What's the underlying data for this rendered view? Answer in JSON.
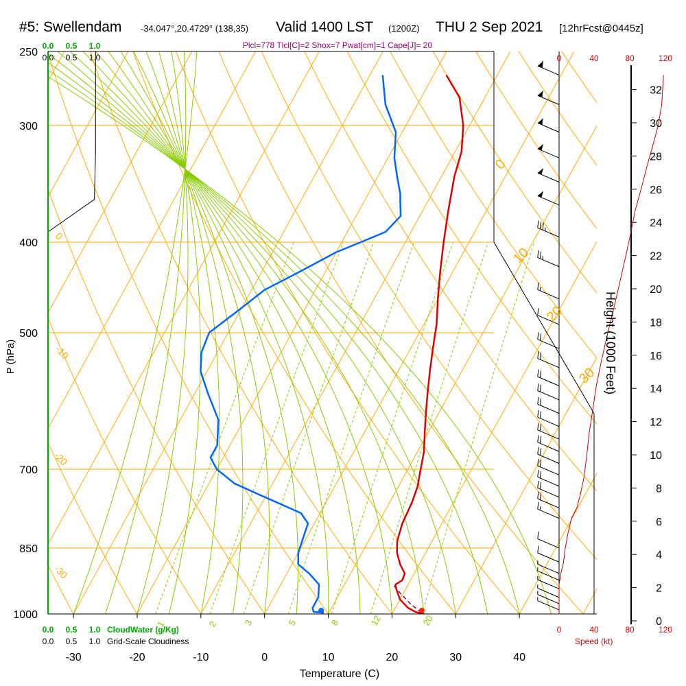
{
  "header": {
    "station": "#5: Swellendam",
    "coords": "-34.047°,20.4729° (138,35)",
    "valid_main": "Valid 1400 LST",
    "valid_z": "(1200Z)",
    "date": "THU 2 Sep 2021",
    "fcst": "[12hrFcst@0445z]"
  },
  "indices_text": "Plcl=778 Tlcl[C]=2 Shox=7 Pwat[cm]=1 Cape[J]= 20",
  "chart_data": {
    "type": "line",
    "title": "#5: Swellendam",
    "xlabel": "Temperature (C)",
    "ylabel": "P (hPa)",
    "y2label": "Height (1000 Feet)",
    "xlim": [
      -34,
      36
    ],
    "ylim": [
      1000,
      250
    ],
    "xticks": [
      -30,
      -20,
      -10,
      0,
      10,
      20,
      30,
      40
    ],
    "yticks": [
      250,
      300,
      400,
      500,
      700,
      850,
      1000
    ],
    "height_ticks": [
      0,
      2,
      4,
      6,
      8,
      10,
      12,
      14,
      16,
      18,
      20,
      22,
      24,
      26,
      28,
      30,
      32
    ],
    "series": [
      {
        "name": "temperature",
        "color": "#e00000",
        "points": [
          [
            25,
            1000
          ],
          [
            23.5,
            995
          ],
          [
            22,
            985
          ],
          [
            20,
            965
          ],
          [
            18.5,
            940
          ],
          [
            18,
            930
          ],
          [
            18.7,
            920
          ],
          [
            18.5,
            905
          ],
          [
            17,
            885
          ],
          [
            15.5,
            860
          ],
          [
            14.5,
            835
          ],
          [
            13.8,
            800
          ],
          [
            13.5,
            760
          ],
          [
            13,
            730
          ],
          [
            12,
            700
          ],
          [
            11,
            670
          ],
          [
            9.5,
            640
          ],
          [
            8,
            610
          ],
          [
            6.5,
            580
          ],
          [
            5,
            550
          ],
          [
            3.5,
            520
          ],
          [
            2,
            490
          ],
          [
            0,
            460
          ],
          [
            -2,
            430
          ],
          [
            -4,
            400
          ],
          [
            -6,
            370
          ],
          [
            -8,
            340
          ],
          [
            -9,
            320
          ],
          [
            -11,
            300
          ],
          [
            -14,
            280
          ],
          [
            -18,
            265
          ]
        ]
      },
      {
        "name": "dewpoint",
        "color": "#0066ff",
        "points": [
          [
            9.2,
            997
          ],
          [
            7.5,
            995
          ],
          [
            7,
            985
          ],
          [
            7,
            960
          ],
          [
            6,
            930
          ],
          [
            3.5,
            905
          ],
          [
            1,
            885
          ],
          [
            0,
            860
          ],
          [
            -0.5,
            830
          ],
          [
            -1,
            800
          ],
          [
            -3,
            780
          ],
          [
            -10,
            750
          ],
          [
            -16,
            725
          ],
          [
            -20,
            700
          ],
          [
            -22,
            680
          ],
          [
            -22,
            660
          ],
          [
            -24,
            620
          ],
          [
            -28,
            580
          ],
          [
            -31,
            550
          ],
          [
            -32.5,
            525
          ],
          [
            -33,
            500
          ],
          [
            -30,
            470
          ],
          [
            -28,
            450
          ],
          [
            -24,
            430
          ],
          [
            -20,
            410
          ],
          [
            -17,
            400
          ],
          [
            -14,
            390
          ],
          [
            -13,
            375
          ],
          [
            -14,
            365
          ],
          [
            -15,
            355
          ],
          [
            -17,
            340
          ],
          [
            -19,
            325
          ],
          [
            -21,
            305
          ],
          [
            -25,
            285
          ],
          [
            -28,
            265
          ]
        ]
      },
      {
        "name": "parcel",
        "color": "#990033",
        "points": [
          [
            24.5,
            997
          ],
          [
            22,
            975
          ],
          [
            20,
            955
          ],
          [
            18.5,
            940
          ],
          [
            17.5,
            928
          ]
        ]
      },
      {
        "name": "cloudiness",
        "color": "#000000",
        "points": [
          [
            0.85,
            250
          ],
          [
            0.85,
            320
          ],
          [
            0.83,
            360
          ],
          [
            0,
            390
          ]
        ]
      },
      {
        "name": "wind_speed",
        "color": "#cc0000",
        "points": [
          [
            0,
            1000
          ],
          [
            0,
            930
          ],
          [
            2,
            905
          ],
          [
            5,
            880
          ],
          [
            7,
            850
          ],
          [
            10,
            820
          ],
          [
            14,
            790
          ],
          [
            20,
            770
          ],
          [
            24,
            745
          ],
          [
            28,
            715
          ],
          [
            31,
            680
          ],
          [
            34,
            640
          ],
          [
            38,
            605
          ],
          [
            42,
            570
          ],
          [
            48,
            535
          ],
          [
            55,
            500
          ],
          [
            62,
            470
          ],
          [
            69,
            440
          ],
          [
            75,
            415
          ],
          [
            80,
            395
          ],
          [
            86,
            370
          ],
          [
            93,
            350
          ],
          [
            100,
            330
          ],
          [
            106,
            315
          ],
          [
            112,
            300
          ],
          [
            116,
            285
          ],
          [
            118,
            265
          ]
        ]
      }
    ],
    "wind_barbs": [
      {
        "p": 265,
        "spd": 60,
        "dir": 270
      },
      {
        "p": 285,
        "spd": 55,
        "dir": 270
      },
      {
        "p": 305,
        "spd": 55,
        "dir": 270
      },
      {
        "p": 325,
        "spd": 50,
        "dir": 270
      },
      {
        "p": 345,
        "spd": 50,
        "dir": 270
      },
      {
        "p": 365,
        "spd": 50,
        "dir": 270
      },
      {
        "p": 395,
        "spd": 35,
        "dir": 270
      },
      {
        "p": 425,
        "spd": 25,
        "dir": 270
      },
      {
        "p": 460,
        "spd": 15,
        "dir": 270
      },
      {
        "p": 490,
        "spd": 10,
        "dir": 270
      },
      {
        "p": 520,
        "spd": 20,
        "dir": 280
      },
      {
        "p": 545,
        "spd": 20,
        "dir": 280
      },
      {
        "p": 570,
        "spd": 20,
        "dir": 280
      },
      {
        "p": 590,
        "spd": 20,
        "dir": 280
      },
      {
        "p": 610,
        "spd": 20,
        "dir": 280
      },
      {
        "p": 630,
        "spd": 20,
        "dir": 285
      },
      {
        "p": 650,
        "spd": 20,
        "dir": 285
      },
      {
        "p": 670,
        "spd": 20,
        "dir": 285
      },
      {
        "p": 690,
        "spd": 20,
        "dir": 285
      },
      {
        "p": 710,
        "spd": 20,
        "dir": 290
      },
      {
        "p": 730,
        "spd": 20,
        "dir": 290
      },
      {
        "p": 750,
        "spd": 20,
        "dir": 290
      },
      {
        "p": 770,
        "spd": 20,
        "dir": 300
      },
      {
        "p": 790,
        "spd": 15,
        "dir": 300
      },
      {
        "p": 850,
        "spd": 10,
        "dir": 310
      },
      {
        "p": 880,
        "spd": 10,
        "dir": 330
      },
      {
        "p": 905,
        "spd": 5,
        "dir": 340
      },
      {
        "p": 920,
        "spd": 5,
        "dir": 350
      },
      {
        "p": 940,
        "spd": 5,
        "dir": 350
      },
      {
        "p": 960,
        "spd": 5,
        "dir": 355
      },
      {
        "p": 975,
        "spd": 5,
        "dir": 355
      },
      {
        "p": 990,
        "spd": 5,
        "dir": 0
      }
    ],
    "surface_temperature": 25,
    "surface_dewpoint": 9.2,
    "isotherm_labels": [
      "0",
      "10",
      "20",
      "30",
      "0",
      "-10",
      "-20",
      "-30"
    ],
    "mixing_ratio_labels": [
      "1",
      "2",
      "3",
      "5",
      "8",
      "12",
      "20"
    ],
    "cloudwater_label": "CloudWater (g/Kg)",
    "cloudiness_label": "Grid-Scale Cloudiness",
    "scale_labels": [
      "0.0",
      "0.5",
      "1.0"
    ],
    "speed_label": "Speed (kt)",
    "speed_ticks": [
      "0",
      "40",
      "80",
      "120"
    ]
  },
  "colors": {
    "isotherm": "#ffaa00",
    "isobar": "#ffaa00",
    "dry_adiabat": "#ffaa00",
    "moist_adiabat": "#88cc00",
    "mixing_ratio": "#88cc00",
    "cloudwater": "#00aa00",
    "indices": "#990066"
  }
}
